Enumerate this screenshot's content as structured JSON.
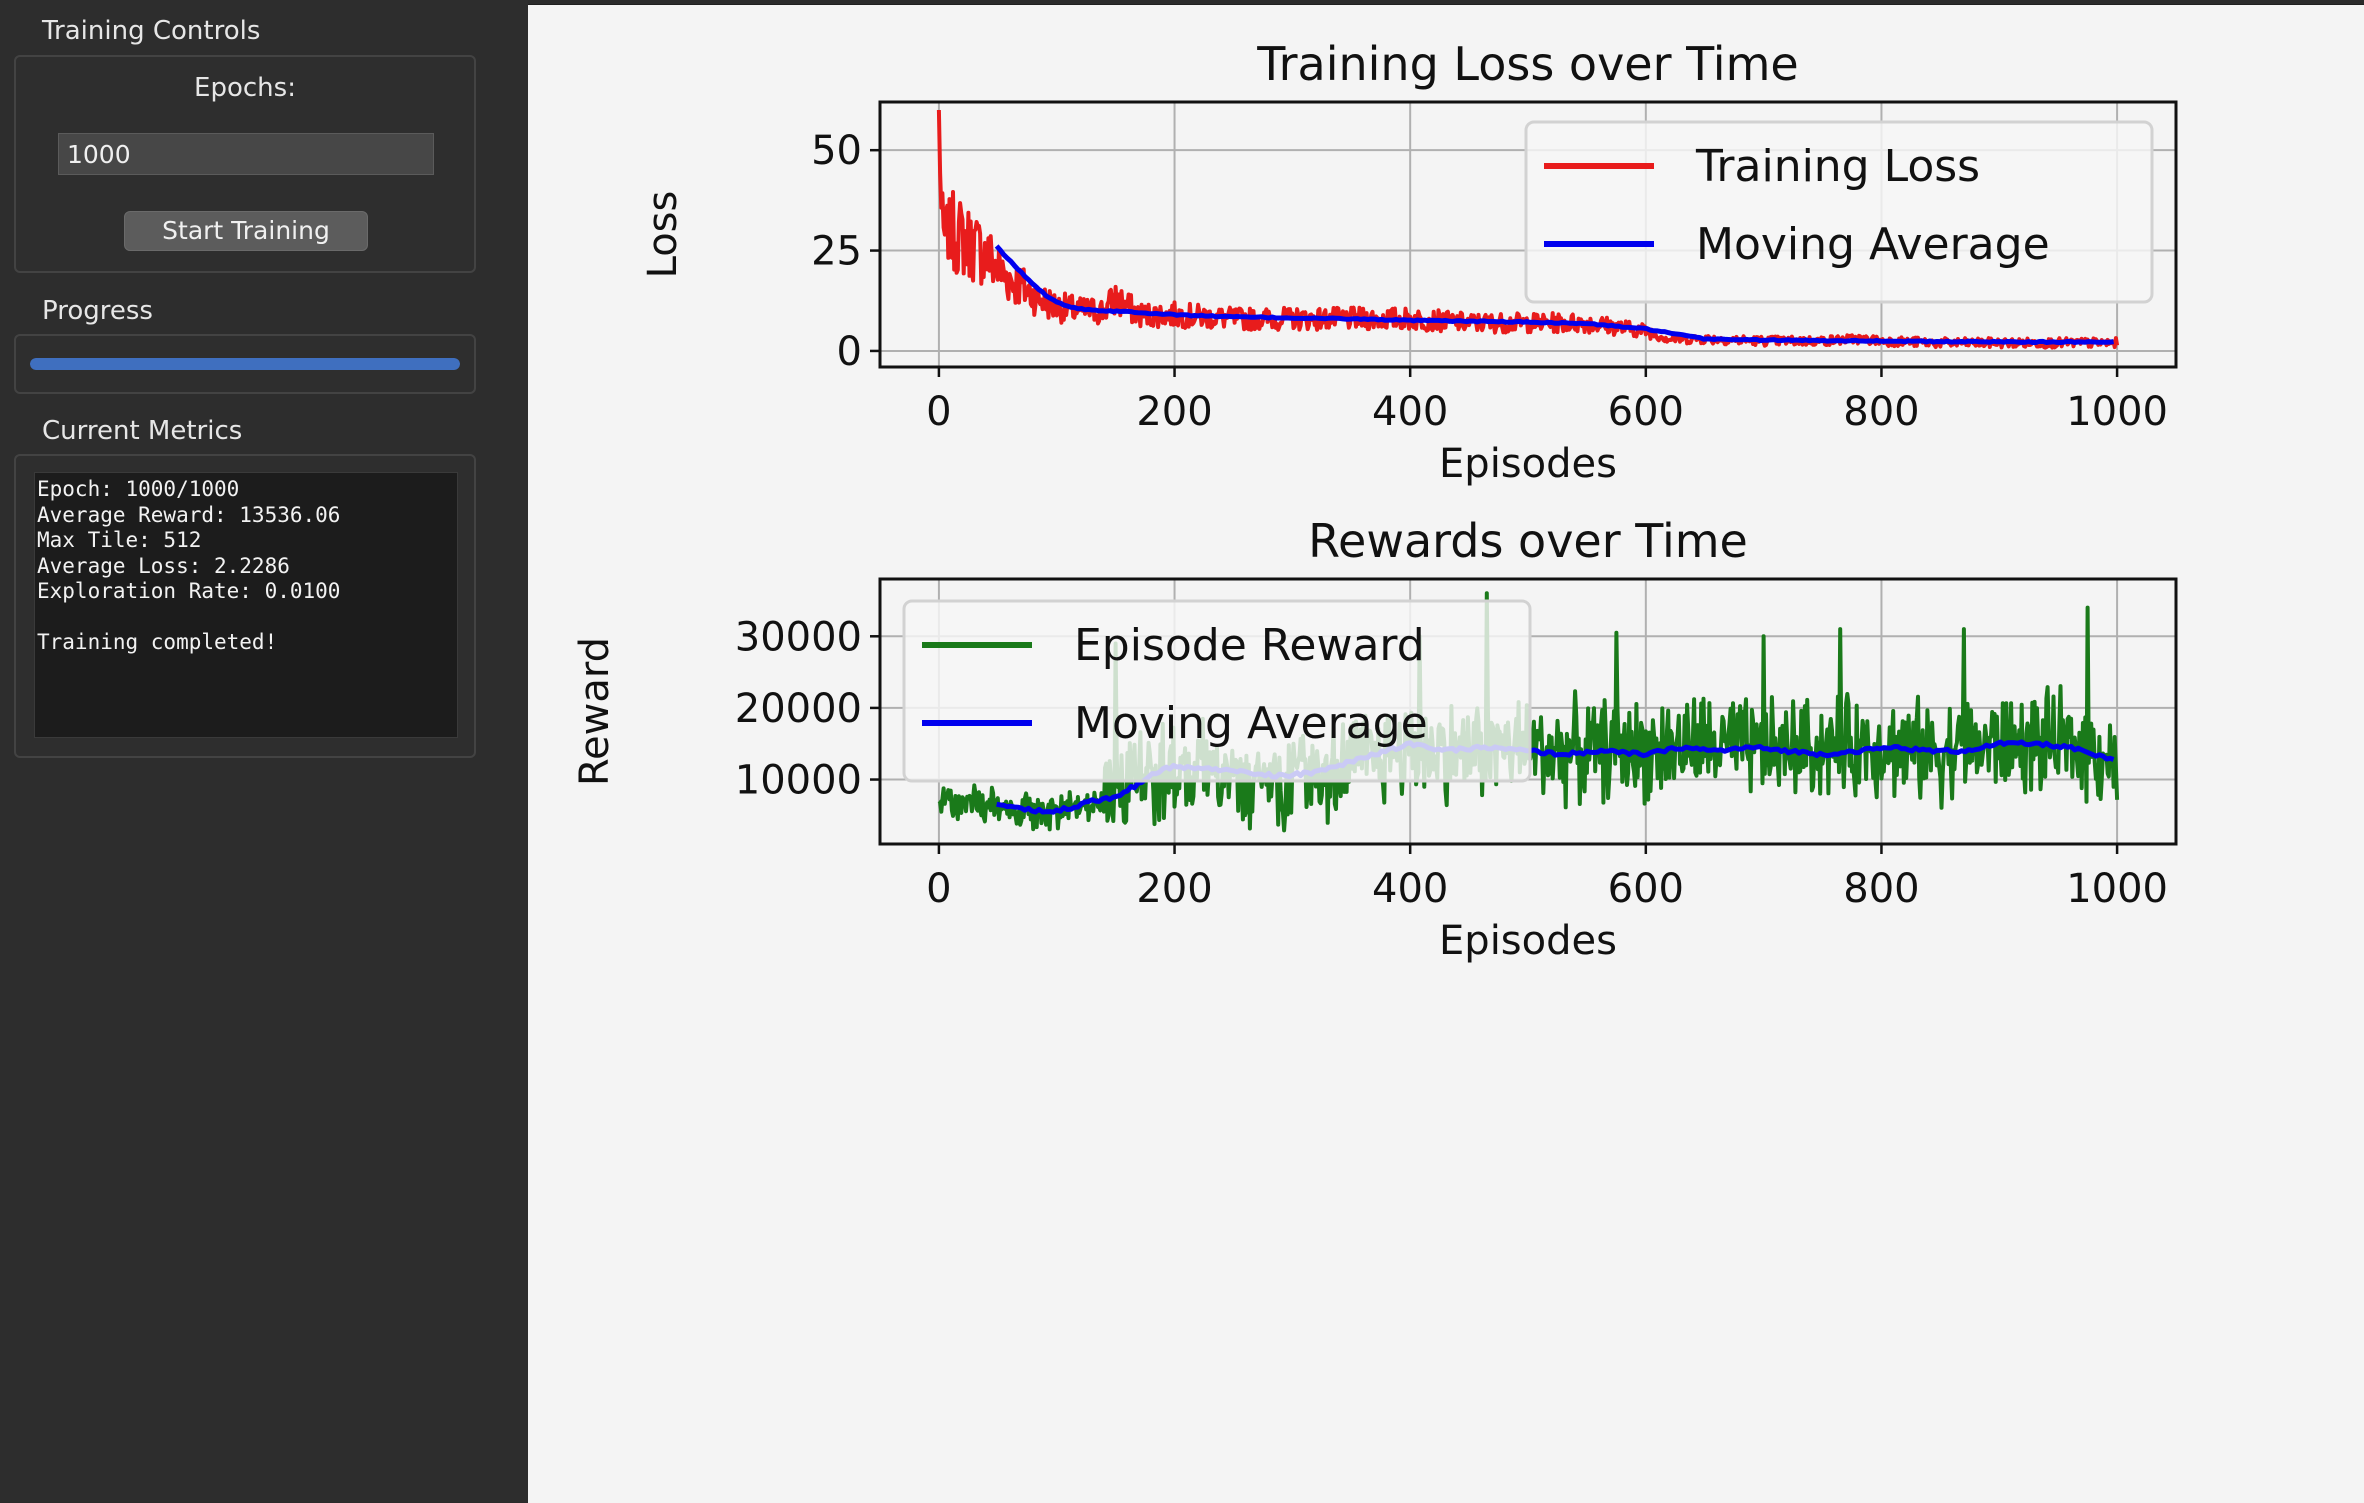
{
  "sidebar": {
    "training_controls": {
      "title": "Training Controls",
      "epochs_label": "Epochs:",
      "epochs_value": "1000",
      "start_button": "Start Training"
    },
    "progress": {
      "title": "Progress",
      "value": 1.0
    },
    "metrics": {
      "title": "Current Metrics",
      "lines": [
        "Epoch: 1000/1000",
        "Average Reward: 13536.06",
        "Max Tile: 512",
        "Average Loss: 2.2286",
        "Exploration Rate: 0.0100",
        "",
        "Training completed!"
      ]
    }
  },
  "chart_data": [
    {
      "type": "line",
      "title": "Training Loss over Time",
      "xlabel": "Episodes",
      "ylabel": "Loss",
      "xlim": [
        -50,
        1050
      ],
      "ylim": [
        -4,
        62
      ],
      "xticks": [
        0,
        200,
        400,
        600,
        800,
        1000
      ],
      "yticks": [
        0,
        25,
        50
      ],
      "grid": true,
      "legend": "top-right",
      "series": [
        {
          "name": "Training Loss",
          "color": "#e81c1c",
          "x": [
            0,
            2,
            4,
            8,
            15,
            25,
            40,
            55,
            70,
            85,
            100,
            120,
            140,
            150,
            170,
            200,
            250,
            300,
            350,
            400,
            450,
            500,
            550,
            600,
            620,
            650,
            700,
            750,
            780,
            800,
            850,
            900,
            950,
            1000
          ],
          "y": [
            60,
            35,
            28,
            30,
            29,
            27,
            24,
            19,
            16,
            13,
            11,
            10,
            10,
            13,
            9,
            9,
            8,
            8,
            8,
            8,
            7,
            7,
            7,
            5,
            3,
            3,
            2.5,
            2.5,
            3,
            2.5,
            2,
            2,
            2,
            2
          ]
        },
        {
          "name": "Moving Average",
          "color": "#0000ee",
          "x": [
            49,
            60,
            75,
            90,
            105,
            120,
            140,
            160,
            200,
            250,
            300,
            350,
            400,
            450,
            500,
            550,
            600,
            625,
            650,
            700,
            750,
            800,
            850,
            900,
            950,
            999
          ],
          "y": [
            26,
            22.5,
            18,
            14,
            11.5,
            10.5,
            10,
            9.8,
            9,
            8.5,
            8.2,
            8,
            7.6,
            7.4,
            7.2,
            6.8,
            5.5,
            4.2,
            3,
            2.7,
            2.6,
            2.5,
            2.3,
            2.3,
            2.2,
            2.3
          ]
        }
      ]
    },
    {
      "type": "line",
      "title": "Rewards over Time",
      "xlabel": "Episodes",
      "ylabel": "Reward",
      "xlim": [
        -50,
        1050
      ],
      "ylim": [
        1000,
        38000
      ],
      "xticks": [
        0,
        200,
        400,
        600,
        800,
        1000
      ],
      "yticks": [
        10000,
        20000,
        30000
      ],
      "grid": true,
      "legend": "top-left",
      "series": [
        {
          "name": "Episode Reward",
          "color": "#1a7a1a",
          "x": [
            0,
            25,
            50,
            75,
            100,
            125,
            150,
            175,
            200,
            225,
            250,
            275,
            300,
            325,
            350,
            375,
            400,
            425,
            450,
            475,
            500,
            525,
            550,
            575,
            600,
            625,
            650,
            675,
            700,
            725,
            750,
            775,
            800,
            825,
            850,
            875,
            900,
            925,
            950,
            975,
            1000
          ],
          "y": [
            7000,
            6500,
            6000,
            5500,
            5800,
            6800,
            9000,
            10500,
            11500,
            11000,
            11000,
            10500,
            10500,
            11500,
            12500,
            13500,
            14500,
            14000,
            14000,
            14500,
            14500,
            14000,
            14000,
            14500,
            14000,
            14500,
            15000,
            14500,
            14000,
            14500,
            14500,
            14500,
            15000,
            14000,
            14000,
            14500,
            15000,
            15000,
            15000,
            14500,
            13000
          ],
          "noise_amplitude": 6500,
          "peaks": [
            [
              150,
              29000
            ],
            [
              465,
              36000
            ],
            [
              408,
              30000
            ],
            [
              575,
              30500
            ],
            [
              700,
              30000
            ],
            [
              765,
              31000
            ],
            [
              870,
              31000
            ],
            [
              975,
              34000
            ]
          ]
        },
        {
          "name": "Moving Average",
          "color": "#0000ee",
          "x": [
            49,
            70,
            90,
            110,
            130,
            150,
            170,
            190,
            200,
            230,
            260,
            290,
            320,
            350,
            380,
            400,
            430,
            460,
            500,
            530,
            560,
            600,
            630,
            660,
            690,
            720,
            750,
            780,
            810,
            840,
            870,
            900,
            930,
            960,
            999
          ],
          "y": [
            6500,
            6000,
            5500,
            6000,
            7000,
            7500,
            9500,
            11500,
            11800,
            11500,
            11000,
            10500,
            11000,
            12500,
            14000,
            15000,
            14000,
            14500,
            14000,
            13500,
            14000,
            13500,
            14500,
            14000,
            14500,
            14000,
            13500,
            14000,
            14500,
            14000,
            14000,
            15000,
            15000,
            14500,
            12500
          ]
        }
      ]
    }
  ]
}
